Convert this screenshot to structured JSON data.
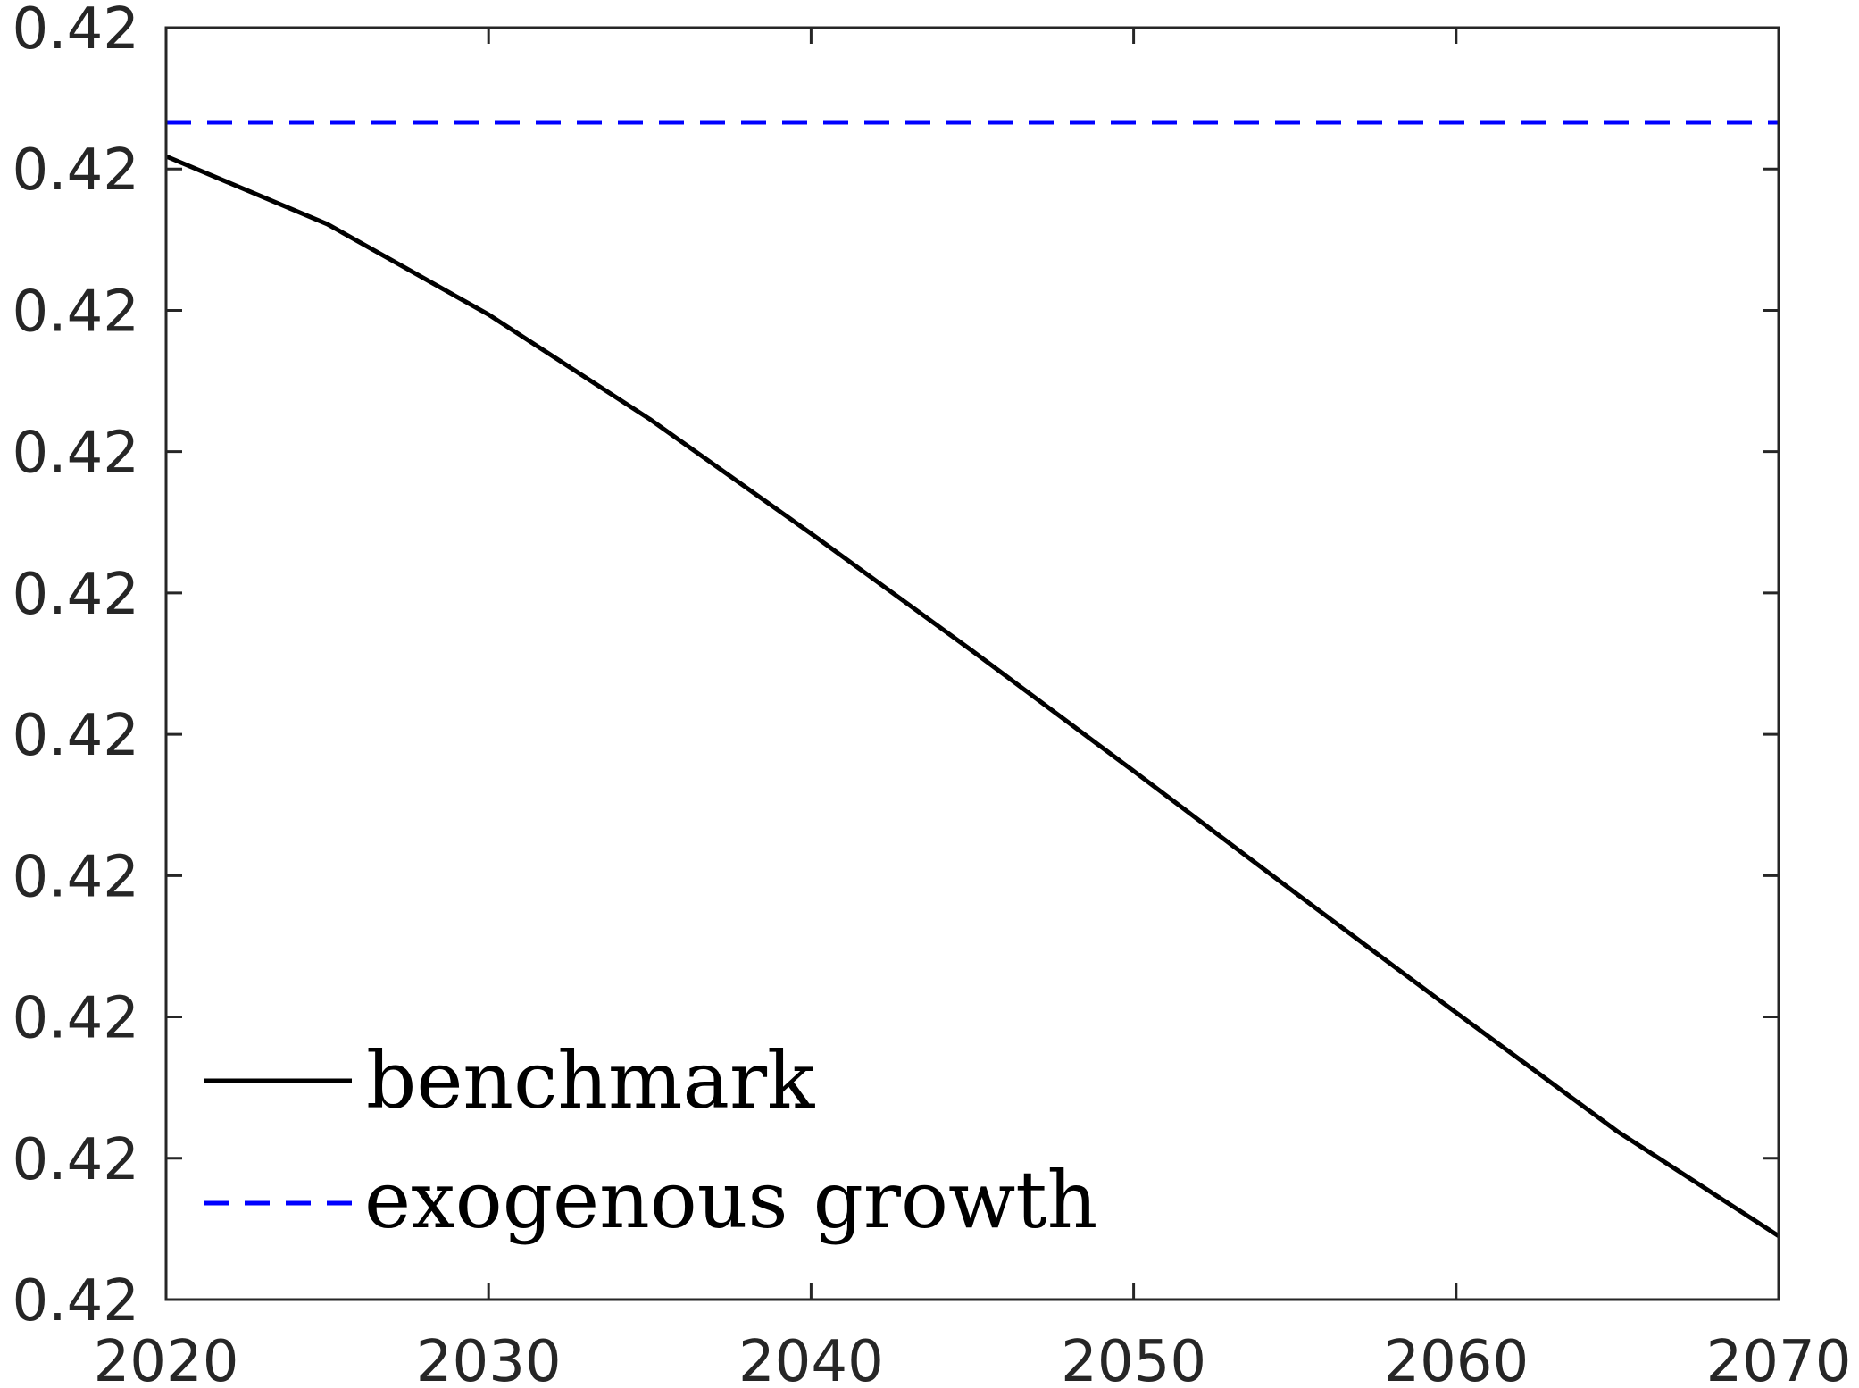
{
  "chart_data": {
    "type": "line",
    "title": "",
    "xlabel": "",
    "ylabel": "",
    "xlim": [
      2020,
      2070
    ],
    "ylim": [
      0,
      9
    ],
    "x_ticks": [
      2020,
      2030,
      2040,
      2050,
      2060,
      2070
    ],
    "x_tick_labels": [
      "2020",
      "2030",
      "2040",
      "2050",
      "2060",
      "2070"
    ],
    "y_ticks": [
      0,
      1,
      2,
      3,
      4,
      5,
      6,
      7,
      8,
      9
    ],
    "y_tick_labels": [
      "0.42",
      "0.42",
      "0.42",
      "0.42",
      "0.42",
      "0.42",
      "0.42",
      "0.42",
      "0.42",
      "0.42"
    ],
    "grid": false,
    "legend_position": "bottom-left",
    "series": [
      {
        "name": "benchmark",
        "color": "#000000",
        "line_style": "solid",
        "x": [
          2020,
          2025,
          2030,
          2035,
          2040,
          2045,
          2050,
          2055,
          2060,
          2065,
          2070
        ],
        "y": [
          8.09,
          7.61,
          6.97,
          6.23,
          5.42,
          4.59,
          3.74,
          2.88,
          2.03,
          1.19,
          0.45
        ]
      },
      {
        "name": "exogenous growth",
        "color": "#0000ff",
        "line_style": "dashed",
        "x": [
          2020,
          2070
        ],
        "y": [
          8.33,
          8.33
        ]
      }
    ]
  }
}
